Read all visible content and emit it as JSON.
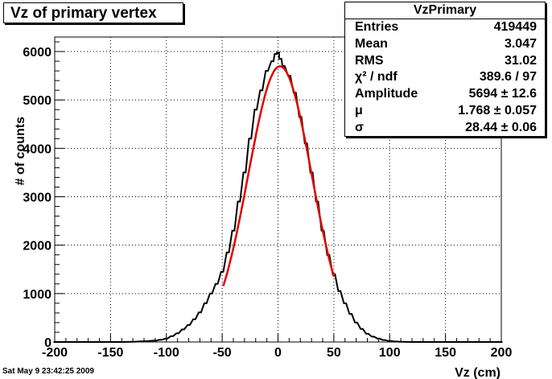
{
  "title": "Vz of primary vertex",
  "footer": "Sat May  9 23:42:25 2009",
  "stats": {
    "name": "VzPrimary",
    "rows": [
      {
        "label": "Entries",
        "value": "419449"
      },
      {
        "label": "Mean",
        "value": "3.047"
      },
      {
        "label": "RMS",
        "value": "31.02"
      },
      {
        "label": "χ² / ndf",
        "value": "389.6 / 97"
      },
      {
        "label": "Amplitude",
        "value": "5694 ± 12.6"
      },
      {
        "label": "μ",
        "value": "1.768 ± 0.057"
      },
      {
        "label": "σ",
        "value": "28.44 ± 0.06"
      }
    ]
  },
  "chart_data": {
    "type": "line",
    "xlabel": "Vz (cm)",
    "ylabel": "# of counts",
    "xlim": [
      -200,
      200
    ],
    "ylim": [
      0,
      6300
    ],
    "xticks": [
      -200,
      -150,
      -100,
      -50,
      0,
      50,
      100,
      150,
      200
    ],
    "yticks": [
      0,
      1000,
      2000,
      3000,
      4000,
      5000,
      6000
    ],
    "grid": true,
    "series": [
      {
        "kind": "histogram",
        "color": "#000000",
        "bin_width": 2,
        "x": [
          -200,
          -190,
          -180,
          -170,
          -160,
          -150,
          -140,
          -130,
          -120,
          -110,
          -105,
          -100,
          -95,
          -90,
          -85,
          -80,
          -75,
          -70,
          -65,
          -60,
          -55,
          -50,
          -45,
          -40,
          -35,
          -30,
          -25,
          -20,
          -15,
          -10,
          -5,
          -2,
          0,
          2,
          5,
          10,
          15,
          20,
          25,
          30,
          35,
          40,
          45,
          50,
          55,
          60,
          65,
          70,
          75,
          80,
          85,
          90,
          95,
          100,
          105,
          110,
          120,
          130,
          140,
          150,
          160,
          170,
          180,
          190,
          200
        ],
        "y": [
          0,
          0,
          0,
          0,
          0,
          0,
          0,
          5,
          15,
          30,
          45,
          70,
          120,
          180,
          260,
          350,
          470,
          610,
          800,
          1000,
          1200,
          1450,
          1850,
          2300,
          2900,
          3500,
          4200,
          4800,
          5200,
          5600,
          5800,
          5950,
          5980,
          5850,
          5700,
          5500,
          5150,
          4650,
          4100,
          3500,
          2900,
          2300,
          1800,
          1400,
          1050,
          800,
          580,
          400,
          270,
          170,
          110,
          70,
          40,
          20,
          10,
          5,
          0,
          0,
          0,
          0,
          0,
          0,
          0,
          0,
          0
        ]
      },
      {
        "kind": "fit",
        "color": "#e00000",
        "amplitude": 5694,
        "mu": 1.768,
        "sigma": 28.44,
        "range": [
          -49,
          50
        ]
      }
    ]
  }
}
